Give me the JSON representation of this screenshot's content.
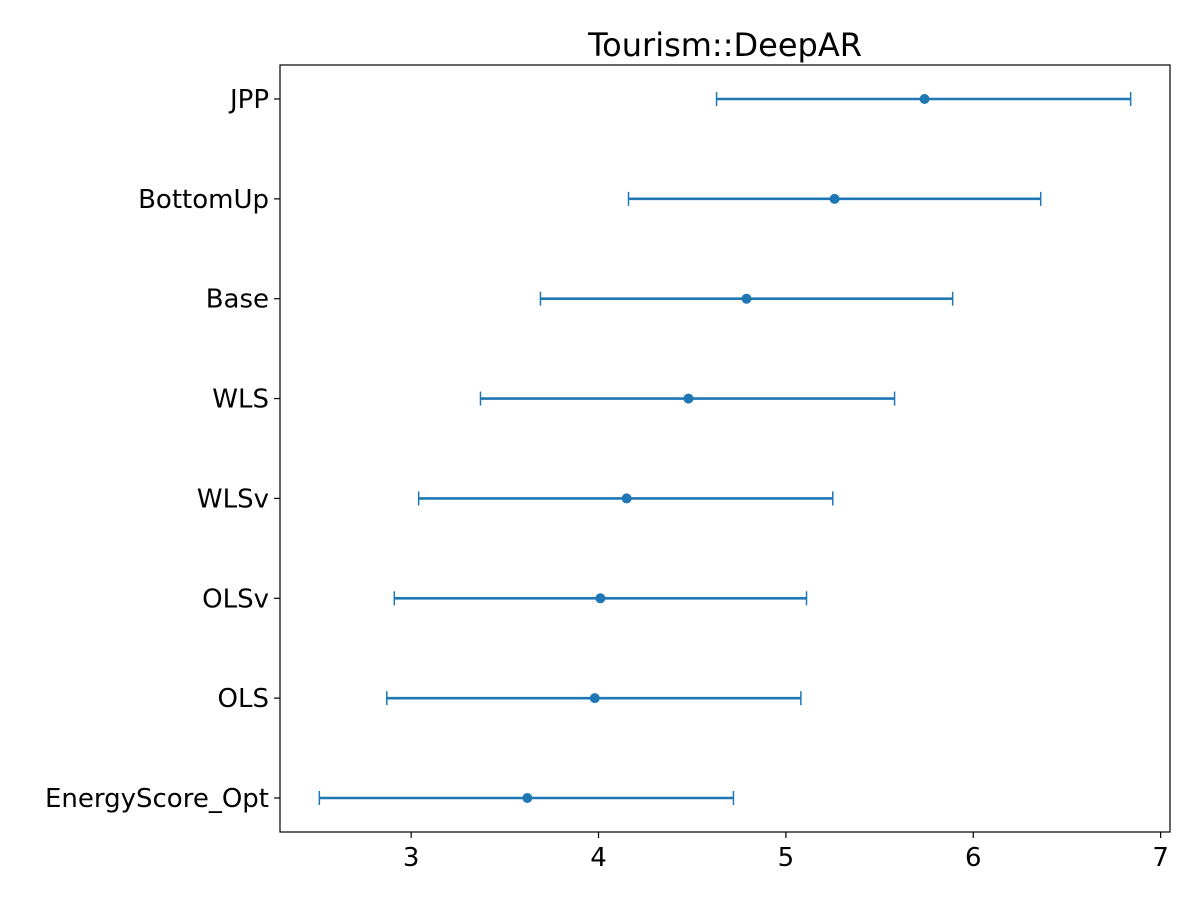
{
  "chart_data": {
    "type": "errorbar",
    "title": "Tourism::DeepAR",
    "xlabel": "",
    "ylabel": "",
    "categories": [
      "JPP",
      "BottomUp",
      "Base",
      "WLS",
      "WLSv",
      "OLSv",
      "OLS",
      "EnergyScore_Opt"
    ],
    "values": [
      5.74,
      5.26,
      4.79,
      4.48,
      4.15,
      4.01,
      3.98,
      3.62
    ],
    "ci_low": [
      4.63,
      4.16,
      3.69,
      3.37,
      3.04,
      2.91,
      2.87,
      2.51
    ],
    "ci_high": [
      6.84,
      6.36,
      5.89,
      5.58,
      5.25,
      5.11,
      5.08,
      4.72
    ],
    "xlim": [
      2.3,
      7.05
    ],
    "xticks": [
      3,
      4,
      5,
      6,
      7
    ],
    "grid": false,
    "legend": "none",
    "color": "#1f77b4"
  }
}
